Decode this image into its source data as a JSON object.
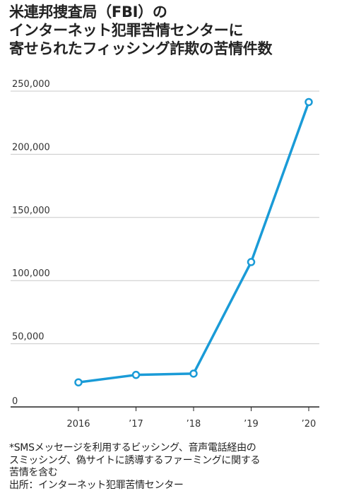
{
  "title_lines": [
    "米連邦捜査局（FBI）の",
    "インターネット犯罪苦情センターに",
    "寄せられたフィッシング詐欺の苦情件数"
  ],
  "colors": {
    "line": "#1a9bd7",
    "grid": "#c8c8c8",
    "axis": "#222222",
    "text": "#222222"
  },
  "chart_data": {
    "type": "line",
    "title": "米連邦捜査局（FBI）のインターネット犯罪苦情センターに寄せられたフィッシング詐欺の苦情件数",
    "categories": [
      "2016",
      "’17",
      "’18",
      "’19",
      "’20"
    ],
    "values": [
      19465,
      25344,
      26379,
      114702,
      241342
    ],
    "ylim": [
      0,
      250000
    ],
    "y_ticks": [
      0,
      50000,
      100000,
      150000,
      200000,
      250000
    ],
    "y_tick_labels": [
      "0",
      "50,000",
      "100,000",
      "150,000",
      "200,000",
      "250,000"
    ],
    "grid": true,
    "markers": "hollow-circle"
  },
  "notes": [
    "*SMSメッセージを利用するビッシング、音声電話経由の",
    "スミッシング、偽サイトに誘導するファーミングに関する",
    "苦情を含む",
    "出所：インターネット犯罪苦情センター"
  ]
}
